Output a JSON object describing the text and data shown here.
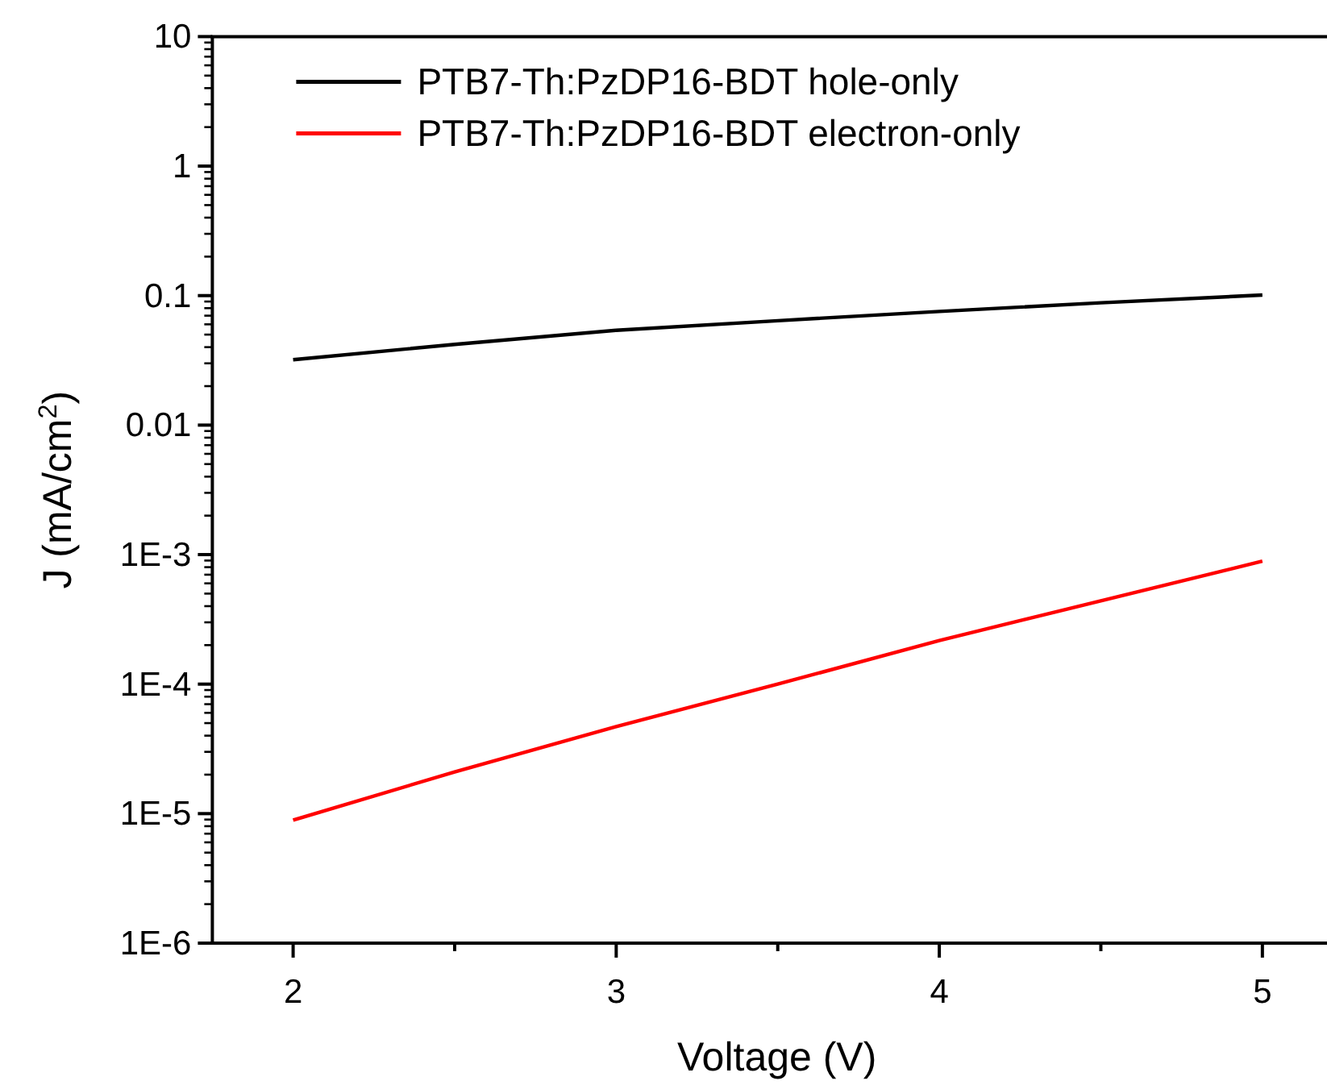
{
  "chart_data": {
    "type": "line",
    "xlabel": "Voltage (V)",
    "ylabel": "J (mA/cm$^{2}$)",
    "log": "y",
    "legend": "top left",
    "line_style": "solid",
    "marker": "none",
    "xlim": [
      1.75,
      5.2
    ],
    "xticks": [
      2,
      3,
      4,
      5
    ],
    "ylim": [
      1e-06,
      10
    ],
    "yticks": [
      10,
      1,
      0.1,
      0.01,
      {
        "value": 0.001,
        "label": "1E-3"
      },
      {
        "value": 0.0001,
        "label": "1E-4"
      },
      {
        "value": 1e-05,
        "label": "1E-5"
      },
      {
        "value": 1e-06,
        "label": "1E-6"
      }
    ],
    "series": [
      {
        "name": "PTB7-Th:PzDP16-BDT hole-only",
        "color": "#000000",
        "x": [
          2,
          2.5,
          3,
          3.5,
          4,
          4.5,
          5
        ],
        "values": [
          0.032,
          0.042,
          0.054,
          0.064,
          0.0755,
          0.088,
          0.101
        ]
      },
      {
        "name": "PTB7-Th:PzDP16-BDT electron-only",
        "color": "#ff0000",
        "x": [
          2,
          2.5,
          3,
          3.5,
          4,
          4.5,
          5
        ],
        "values": [
          8.9e-06,
          2.1e-05,
          4.7e-05,
          0.0001,
          0.000217,
          0.00044,
          0.00089
        ]
      }
    ]
  }
}
